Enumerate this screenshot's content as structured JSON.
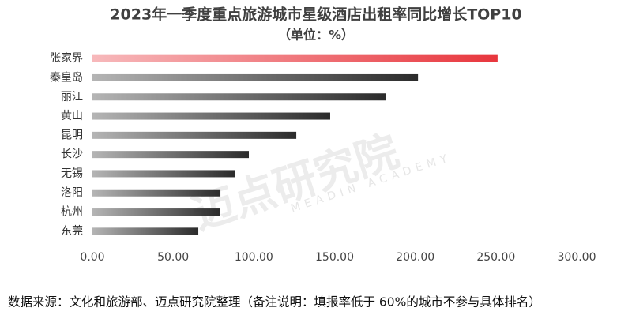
{
  "chart_data": {
    "type": "hbar",
    "title": "2023年一季度重点旅游城市星级酒店出租率同比增长TOP10",
    "subtitle": "（单位：%）",
    "categories": [
      "张家界",
      "秦皇岛",
      "丽江",
      "黄山",
      "昆明",
      "长沙",
      "无锡",
      "洛阳",
      "杭州",
      "东莞"
    ],
    "values": [
      251,
      201.7,
      181.6,
      147.3,
      126.3,
      96.9,
      88.1,
      79.3,
      79,
      65.6
    ],
    "colors": [
      "#e8363d",
      "#2b2b2b",
      "#2b2b2b",
      "#2b2b2b",
      "#2b2b2b",
      "#2b2b2b",
      "#2b2b2b",
      "#2b2b2b",
      "#2b2b2b",
      "#2b2b2b"
    ],
    "xlim": [
      0,
      300
    ],
    "xticks": [
      {
        "value": 0,
        "label": "0.00"
      },
      {
        "value": 50,
        "label": "50.00"
      },
      {
        "value": 100,
        "label": "100.00"
      },
      {
        "value": 150,
        "label": "150.00"
      },
      {
        "value": 200,
        "label": "200.00"
      },
      {
        "value": 250,
        "label": "250.00"
      },
      {
        "value": 300,
        "label": "300.00"
      }
    ],
    "grid": false,
    "watermark": "迈点研究院",
    "watermark_sub": "MEADIN ACADEMY",
    "footnote": "数据来源：文化和旅游部、迈点研究院整理（备注说明：填报率低于 60%的城市不参与具体排名）"
  }
}
